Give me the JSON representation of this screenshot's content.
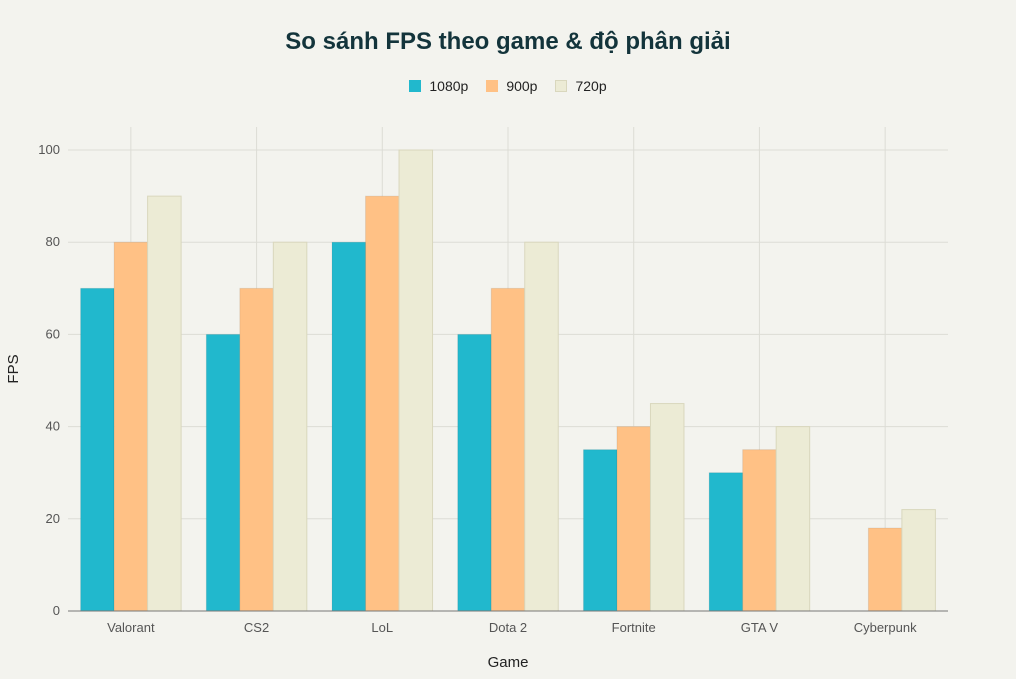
{
  "chart_data": {
    "type": "bar",
    "title": "So sánh FPS theo game & độ phân giải",
    "xlabel": "Game",
    "ylabel": "FPS",
    "ylim": [
      0,
      105
    ],
    "yticks": [
      0,
      20,
      40,
      60,
      80,
      100
    ],
    "grid": true,
    "legend_position": "top-center",
    "categories": [
      "Valorant",
      "CS2",
      "LoL",
      "Dota 2",
      "Fortnite",
      "GTA V",
      "Cyberpunk"
    ],
    "series": [
      {
        "name": "1080p",
        "color": "#21b8cd",
        "values": [
          70,
          60,
          80,
          60,
          35,
          30,
          0
        ]
      },
      {
        "name": "900p",
        "color": "#ffc185",
        "values": [
          80,
          70,
          90,
          70,
          40,
          35,
          18
        ]
      },
      {
        "name": "720p",
        "color": "#ecebd5",
        "values": [
          90,
          80,
          100,
          80,
          45,
          40,
          22
        ]
      }
    ]
  }
}
